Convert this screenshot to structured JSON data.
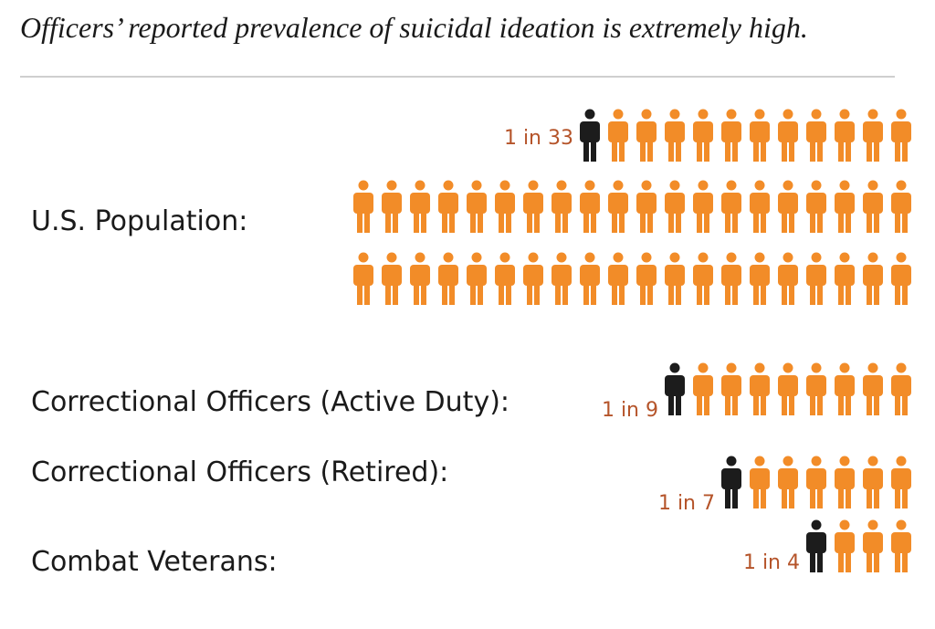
{
  "caption": "Officers’ reported prevalence of suicidal ideation is extremely high.",
  "colors": {
    "highlight": "#1c1c1c",
    "base": "#f28c28",
    "ratio_text": "#b5542a"
  },
  "icon": "person-icon",
  "chart_data": {
    "type": "pictogram",
    "title": "",
    "unit": "people",
    "categories": [
      "U.S. Population:",
      "Correctional Officers (Active Duty):",
      "Correctional Officers (Retired):",
      "Combat Veterans:"
    ],
    "ratio_labels": [
      "1 in 33",
      "1 in 9",
      "1 in 7",
      "1 in 4"
    ],
    "values": [
      33,
      9,
      7,
      4
    ],
    "highlighted": [
      1,
      1,
      1,
      1
    ]
  }
}
